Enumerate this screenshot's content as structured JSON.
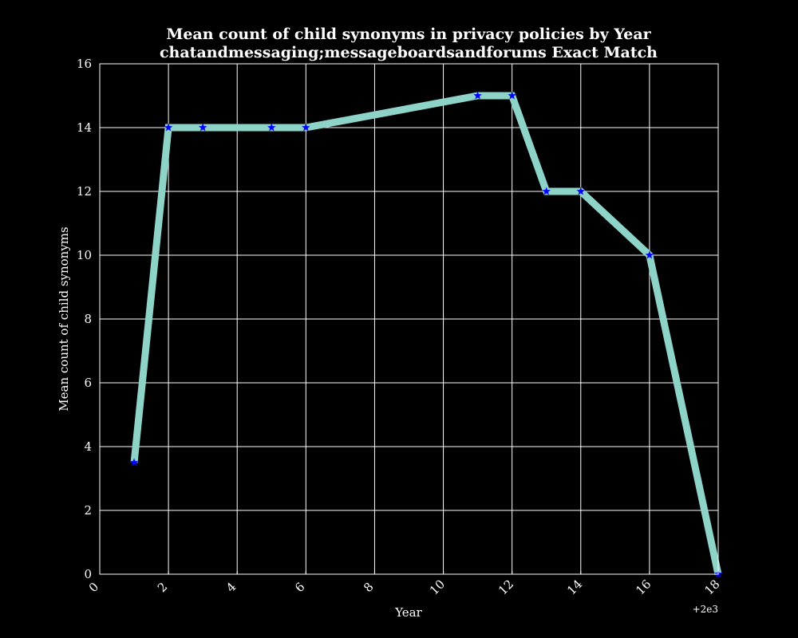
{
  "chart_data": {
    "type": "line",
    "title_lines": [
      "Mean count of child synonyms in privacy policies by Year",
      "chatandmessaging;messageboardsandforums Exact Match"
    ],
    "xlabel": "Year",
    "ylabel": "Mean count of child synonyms",
    "x_offset_label": "+2e3",
    "xlim": [
      0,
      18
    ],
    "ylim": [
      0,
      16
    ],
    "xticks": [
      0,
      2,
      4,
      6,
      8,
      10,
      12,
      14,
      16,
      18
    ],
    "yticks": [
      0,
      2,
      4,
      6,
      8,
      10,
      12,
      14,
      16
    ],
    "x_tick_labels": [
      "0",
      "2",
      "4",
      "6",
      "8",
      "10",
      "12",
      "14",
      "16",
      "18"
    ],
    "y_tick_labels": [
      "0",
      "2",
      "4",
      "6",
      "8",
      "10",
      "12",
      "14",
      "16"
    ],
    "grid": true,
    "series": [
      {
        "x": [
          1,
          2,
          3,
          5,
          6,
          11,
          12,
          13,
          14,
          16,
          18
        ],
        "y": [
          3.5,
          14,
          14,
          14,
          14,
          15,
          15,
          12,
          12,
          10,
          0
        ],
        "line_color": "#8dd3c7",
        "marker": "star",
        "marker_color": "#0000ff"
      }
    ],
    "colors": {
      "background": "#000000",
      "text": "#ffffff",
      "grid": "#ffffff"
    }
  }
}
